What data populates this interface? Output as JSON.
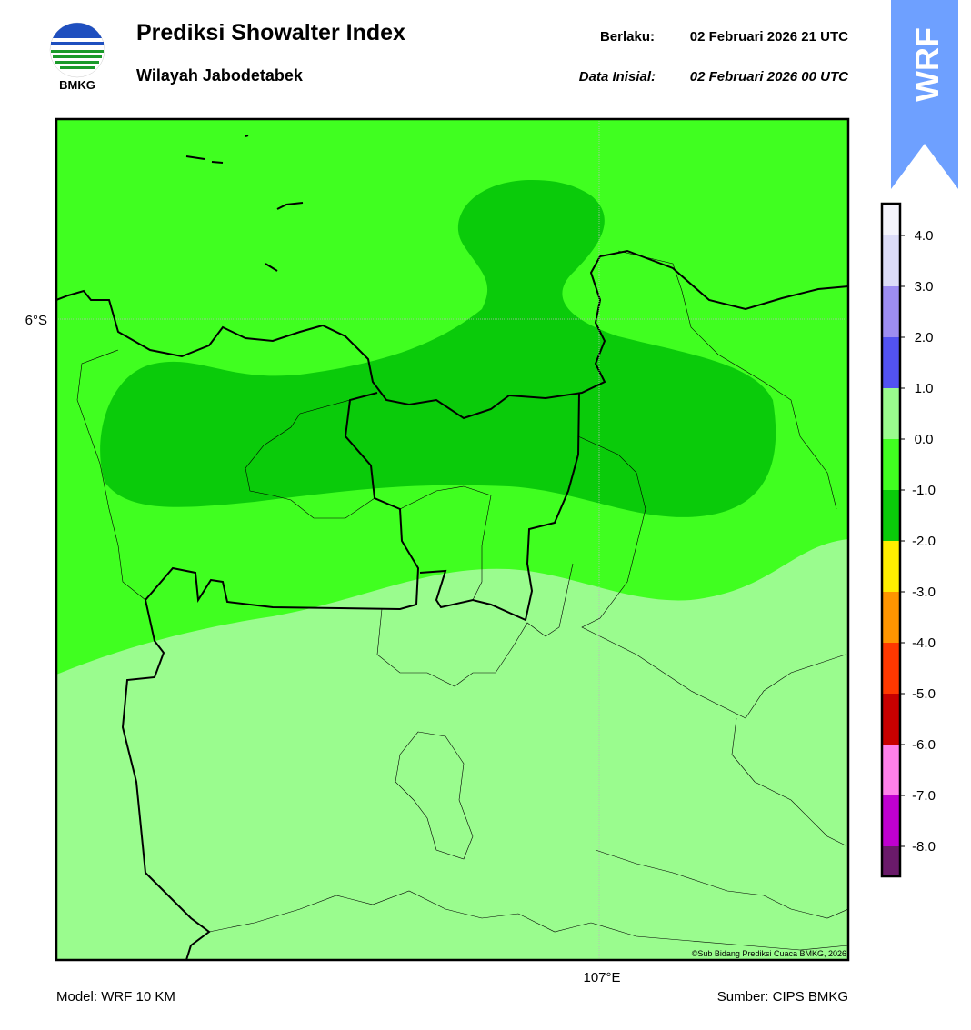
{
  "header": {
    "logo_text": "BMKG",
    "title": "Prediksi Showalter Index",
    "subtitle": "Wilayah Jabodetabek",
    "valid_label": "Berlaku:",
    "valid_time": "02 Februari 2026 21 UTC",
    "init_label": "Data Inisial:",
    "init_time": "02 Februari 2026 00 UTC",
    "badge": "WRF"
  },
  "map": {
    "lat_label": "6°S",
    "lon_label": "107°E",
    "credit": "©Sub Bidang Prediksi Cuaca BMKG, 2026"
  },
  "colorbar": {
    "labels": [
      "4.0",
      "3.0",
      "2.0",
      "1.0",
      "0.0",
      "-1.0",
      "-2.0",
      "-3.0",
      "-4.0",
      "-5.0",
      "-6.0",
      "-7.0",
      "-8.0"
    ],
    "colors": [
      "#f4f4fc",
      "#dcdcf8",
      "#9d8df2",
      "#5252f2",
      "#9afc8e",
      "#40ff20",
      "#0acb0a",
      "#ffee00",
      "#ff9500",
      "#ff3800",
      "#c80000",
      "#ff80ea",
      "#c000d0",
      "#6a1a6a"
    ]
  },
  "footer": {
    "model": "Model: WRF 10 KM",
    "source": "Sumber: CIPS BMKG"
  }
}
